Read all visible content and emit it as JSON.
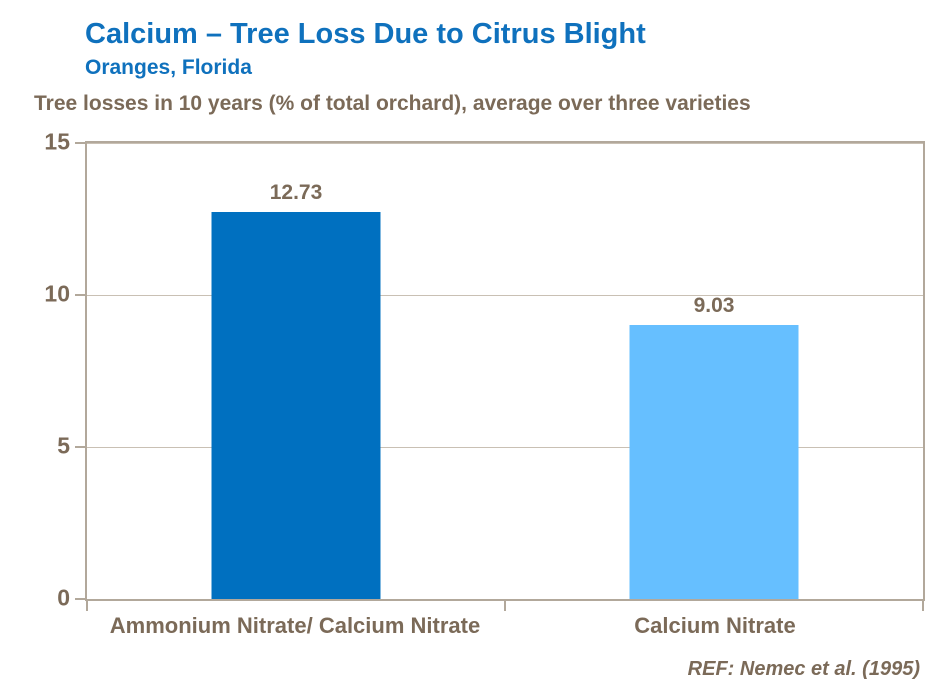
{
  "header": {
    "title": "Calcium – Tree Loss Due to Citrus Blight",
    "subtitle": "Oranges, Florida"
  },
  "chart_data": {
    "type": "bar",
    "title": "Calcium – Tree Loss Due to Citrus Blight",
    "subtitle": "Oranges, Florida",
    "measure_note": "Tree losses in 10 years (% of total orchard), average over three varieties",
    "categories": [
      "Ammonium Nitrate/ Calcium Nitrate",
      "Calcium Nitrate"
    ],
    "values": [
      12.73,
      9.03
    ],
    "value_labels": [
      "12.73",
      "9.03"
    ],
    "bar_colors": [
      "#0070C0",
      "#66BFFF"
    ],
    "ylim": [
      0,
      15
    ],
    "yticks": [
      0,
      5,
      10,
      15
    ],
    "grid": true,
    "legend": false,
    "reference": "REF: Nemec et al. (1995)"
  },
  "colors": {
    "title_blue": "#0f71bd",
    "text_brown": "#7b6a58",
    "axis_border": "#b2a89b",
    "gridline": "#c9c0b4",
    "background": "#ffffff"
  }
}
